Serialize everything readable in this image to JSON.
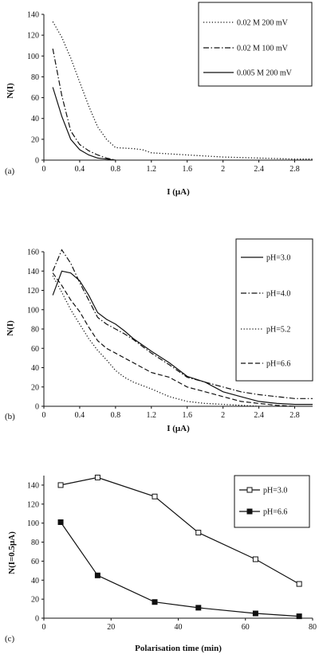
{
  "chart_data": [
    {
      "type": "line",
      "panel_label": "(a)",
      "xlabel": "I (μA)",
      "ylabel": "N(I)",
      "xlim": [
        0,
        3.0
      ],
      "ylim": [
        0,
        140
      ],
      "xticks": [
        0,
        0.4,
        0.8,
        1.2,
        1.6,
        2,
        2.4,
        2.8
      ],
      "xtick_labels": [
        "0",
        "0.4",
        "0.8",
        "1.2",
        "1.6",
        "2",
        "2.4",
        "2.8"
      ],
      "yticks": [
        0,
        20,
        40,
        60,
        80,
        100,
        120,
        140
      ],
      "ytick_labels": [
        "0",
        "20",
        "40",
        "60",
        "80",
        "100",
        "120",
        "140"
      ],
      "legend_position": "top-right, boxed",
      "series": [
        {
          "name": "0.02 M 200 mV",
          "style": "dotted",
          "x": [
            0.1,
            0.2,
            0.3,
            0.4,
            0.5,
            0.6,
            0.7,
            0.8,
            1.0,
            1.1,
            1.2,
            1.6,
            2.0,
            2.4,
            2.8,
            3.0
          ],
          "y": [
            133,
            118,
            98,
            75,
            52,
            32,
            20,
            12,
            11,
            10,
            7,
            5,
            3,
            2,
            1,
            1
          ]
        },
        {
          "name": "0.02 M  100 mV",
          "style": "dash-dot",
          "x": [
            0.1,
            0.2,
            0.3,
            0.4,
            0.5,
            0.6,
            0.7,
            0.8
          ],
          "y": [
            107,
            62,
            28,
            15,
            9,
            5,
            2,
            0
          ]
        },
        {
          "name": "0.005 M 200 mV",
          "style": "solid",
          "x": [
            0.1,
            0.2,
            0.3,
            0.4,
            0.5,
            0.6,
            0.7,
            0.8
          ],
          "y": [
            70,
            42,
            20,
            10,
            5,
            2,
            1,
            0
          ]
        }
      ]
    },
    {
      "type": "line",
      "panel_label": "(b)",
      "xlabel": "I (μA)",
      "ylabel": "N(I)",
      "xlim": [
        0,
        3.0
      ],
      "ylim": [
        0,
        160
      ],
      "xticks": [
        0,
        0.4,
        0.8,
        1.2,
        1.6,
        2,
        2.4,
        2.8
      ],
      "xtick_labels": [
        "0",
        "0.4",
        "0.8",
        "1.2",
        "1.6",
        "2",
        "2.4",
        "2.8"
      ],
      "yticks": [
        0,
        20,
        40,
        60,
        80,
        100,
        120,
        140,
        160
      ],
      "ytick_labels": [
        "0",
        "20",
        "40",
        "60",
        "80",
        "100",
        "120",
        "140",
        "160"
      ],
      "legend_position": "right, boxed",
      "series": [
        {
          "name": "pH=3.0",
          "style": "solid",
          "x": [
            0.1,
            0.2,
            0.3,
            0.4,
            0.5,
            0.6,
            0.7,
            0.8,
            0.9,
            1.0,
            1.2,
            1.4,
            1.6,
            1.8,
            2.0,
            2.2,
            2.4,
            2.6,
            2.8,
            3.0
          ],
          "y": [
            115,
            140,
            138,
            130,
            115,
            97,
            90,
            85,
            78,
            70,
            57,
            45,
            31,
            25,
            15,
            10,
            5,
            3,
            2,
            2
          ]
        },
        {
          "name": "pH=4.0",
          "style": "dash-dot",
          "x": [
            0.1,
            0.2,
            0.3,
            0.4,
            0.5,
            0.6,
            0.7,
            0.8,
            0.9,
            1.0,
            1.2,
            1.4,
            1.6,
            1.8,
            2.0,
            2.2,
            2.4,
            2.6,
            2.8,
            3.0
          ],
          "y": [
            140,
            162,
            148,
            128,
            110,
            92,
            85,
            80,
            75,
            69,
            55,
            43,
            30,
            25,
            20,
            15,
            12,
            10,
            8,
            8
          ]
        },
        {
          "name": "pH=5.2",
          "style": "dotted",
          "x": [
            0.1,
            0.2,
            0.3,
            0.4,
            0.5,
            0.6,
            0.7,
            0.8,
            0.9,
            1.0,
            1.2,
            1.4,
            1.6,
            1.8,
            2.0,
            2.2,
            2.4
          ],
          "y": [
            135,
            118,
            100,
            85,
            70,
            58,
            48,
            37,
            30,
            25,
            18,
            10,
            5,
            3,
            2,
            1,
            0
          ]
        },
        {
          "name": "pH=6.6",
          "style": "dashed",
          "x": [
            0.1,
            0.2,
            0.3,
            0.4,
            0.5,
            0.6,
            0.7,
            0.8,
            0.9,
            1.0,
            1.2,
            1.4,
            1.6,
            1.8,
            2.0,
            2.2,
            2.4,
            2.6,
            2.8
          ],
          "y": [
            138,
            125,
            110,
            98,
            82,
            68,
            60,
            55,
            50,
            45,
            35,
            30,
            20,
            15,
            10,
            5,
            3,
            1,
            0
          ]
        }
      ]
    },
    {
      "type": "line",
      "panel_label": "(c)",
      "xlabel": "Polarisation time (min)",
      "ylabel": "N(I=0.5μA)",
      "xlim": [
        0,
        80
      ],
      "ylim": [
        0,
        150
      ],
      "xticks": [
        0,
        20,
        40,
        60,
        80
      ],
      "xtick_labels": [
        "0",
        "20",
        "40",
        "60",
        "80"
      ],
      "yticks": [
        0,
        20,
        40,
        60,
        80,
        100,
        120,
        140
      ],
      "ytick_labels": [
        "0",
        "20",
        "40",
        "60",
        "80",
        "100",
        "120",
        "140"
      ],
      "legend_position": "top-right, boxed",
      "series": [
        {
          "name": "pH=3.0",
          "style": "solid",
          "marker": "open-square",
          "x": [
            5,
            16,
            33,
            46,
            63,
            76
          ],
          "y": [
            140,
            148,
            128,
            90,
            62,
            36
          ]
        },
        {
          "name": "pH=6.6",
          "style": "solid",
          "marker": "filled-square",
          "x": [
            5,
            16,
            33,
            46,
            63,
            76
          ],
          "y": [
            101,
            45,
            17,
            11,
            5,
            2
          ]
        }
      ]
    }
  ]
}
